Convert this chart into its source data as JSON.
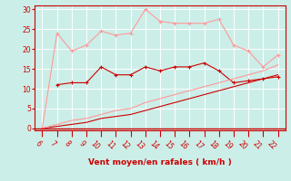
{
  "x": [
    6,
    7,
    8,
    9,
    10,
    11,
    12,
    13,
    14,
    15,
    16,
    17,
    18,
    19,
    20,
    21,
    22
  ],
  "line_dark_red": [
    null,
    11,
    11.5,
    11.5,
    15.5,
    13.5,
    13.5,
    15.5,
    14.5,
    15.5,
    15.5,
    16.5,
    14.5,
    11.5,
    12,
    12.5,
    13
  ],
  "line_light_red": [
    0,
    24,
    19.5,
    21,
    24.5,
    23.5,
    24,
    30,
    27,
    26.5,
    26.5,
    26.5,
    27.5,
    21,
    19.5,
    15.5,
    18.5
  ],
  "line_straight_dark": [
    0,
    0.5,
    1.0,
    1.5,
    2.5,
    3.0,
    3.5,
    4.5,
    5.5,
    6.5,
    7.5,
    8.5,
    9.5,
    10.5,
    11.5,
    12.5,
    13.5
  ],
  "line_straight_light": [
    0,
    1.0,
    2.0,
    2.5,
    3.5,
    4.5,
    5.0,
    6.5,
    7.5,
    8.5,
    9.5,
    10.5,
    11.5,
    12.5,
    13.5,
    14.5,
    16.0
  ],
  "bg_color": "#cceee8",
  "grid_color": "#b0ddd8",
  "dark_red": "#cc0000",
  "light_red": "#ff9999",
  "xlabel": "Vent moyen/en rafales ( km/h )",
  "ylabel_ticks": [
    0,
    5,
    10,
    15,
    20,
    25,
    30
  ],
  "xlim": [
    5.5,
    22.5
  ],
  "ylim": [
    -0.5,
    31
  ],
  "xticks": [
    6,
    7,
    8,
    9,
    10,
    11,
    12,
    13,
    14,
    15,
    16,
    17,
    18,
    19,
    20,
    21,
    22
  ]
}
